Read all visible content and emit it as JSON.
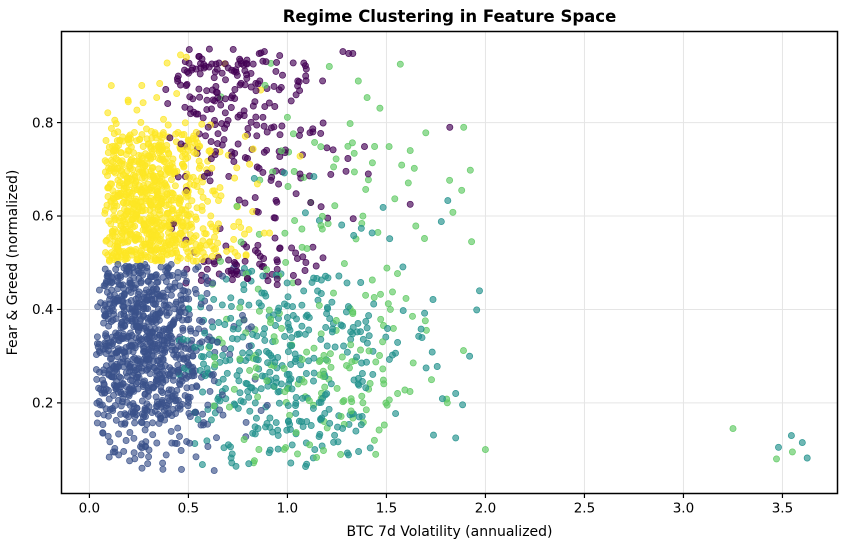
{
  "chart_data": {
    "type": "scatter",
    "title": "Regime Clustering in Feature Space",
    "xlabel": "BTC 7d Volatility (annualized)",
    "ylabel": "Fear & Greed (normalized)",
    "xlim": [
      -0.141,
      3.778
    ],
    "ylim": [
      0.006,
      0.995
    ],
    "xticks": [
      {
        "label": "0.0",
        "value": 0.0
      },
      {
        "label": "0.5",
        "value": 0.5
      },
      {
        "label": "1.0",
        "value": 1.0
      },
      {
        "label": "1.5",
        "value": 1.5
      },
      {
        "label": "2.0",
        "value": 2.0
      },
      {
        "label": "2.5",
        "value": 2.5
      },
      {
        "label": "3.0",
        "value": 3.0
      },
      {
        "label": "3.5",
        "value": 3.5
      }
    ],
    "yticks": [
      {
        "label": "0.2",
        "value": 0.2
      },
      {
        "label": "0.4",
        "value": 0.4
      },
      {
        "label": "0.6",
        "value": 0.6
      },
      {
        "label": "0.8",
        "value": 0.8
      }
    ],
    "grid": true,
    "grid_color": "#e5e5e5",
    "legend": "none",
    "colormap": "viridis",
    "marker": {
      "radius_px": 3.1,
      "fill_alpha": 0.65,
      "edge_alpha": 0.9
    },
    "seed": 7,
    "series": [
      {
        "name": "cluster-blue",
        "color": "#3b528b",
        "parts": [
          {
            "n": 500,
            "x": {
              "kind": "normal",
              "mu": 0.26,
              "sigma": 0.17,
              "lo": 0.035,
              "hi": 0.93
            },
            "y": {
              "kind": "uniform",
              "lo": 0.17,
              "hi": 0.497
            }
          },
          {
            "n": 380,
            "x": {
              "kind": "normal",
              "mu": 0.27,
              "sigma": 0.19,
              "lo": 0.035,
              "hi": 0.9
            },
            "y": {
              "kind": "normal",
              "mu": 0.27,
              "sigma": 0.12,
              "lo": 0.056,
              "hi": 0.497
            }
          }
        ],
        "points": [
          [
            0.63,
            0.055
          ],
          [
            0.12,
            0.095
          ]
        ]
      },
      {
        "name": "cluster-yellow",
        "color": "#fde725",
        "parts": [
          {
            "n": 500,
            "x": {
              "kind": "normal",
              "mu": 0.27,
              "sigma": 0.15,
              "lo": 0.075,
              "hi": 0.9
            },
            "y": {
              "kind": "uniform",
              "lo": 0.503,
              "hi": 0.78
            }
          },
          {
            "n": 310,
            "x": {
              "kind": "normal",
              "mu": 0.35,
              "sigma": 0.22,
              "lo": 0.08,
              "hi": 1.2
            },
            "y": {
              "kind": "absshift",
              "mu": 0.503,
              "sigma": 0.16,
              "lo": 0.503,
              "hi": 0.958
            }
          }
        ],
        "points": [
          [
            0.46,
            0.945
          ],
          [
            0.49,
            0.94
          ]
        ]
      },
      {
        "name": "cluster-purple",
        "color": "#440154",
        "parts": [
          {
            "n": 205,
            "x": {
              "kind": "normal",
              "mu": 0.7,
              "sigma": 0.2,
              "lo": 0.37,
              "hi": 1.33
            },
            "y": {
              "kind": "negabsshift",
              "mu": 0.96,
              "sigma": 0.17,
              "lo": 0.455,
              "hi": 0.958
            }
          },
          {
            "n": 58,
            "x": {
              "kind": "normal",
              "mu": 0.78,
              "sigma": 0.24,
              "lo": 0.42,
              "hi": 1.3
            },
            "y": {
              "kind": "normal",
              "mu": 0.49,
              "sigma": 0.028,
              "lo": 0.452,
              "hi": 0.56
            }
          },
          {
            "n": 30,
            "x": {
              "kind": "normal",
              "mu": 1.05,
              "sigma": 0.18,
              "lo": 0.5,
              "hi": 1.44
            },
            "y": {
              "kind": "normal",
              "mu": 0.7,
              "sigma": 0.12,
              "lo": 0.5,
              "hi": 0.9
            }
          }
        ],
        "points": [
          [
            1.82,
            0.79
          ],
          [
            1.62,
            0.625
          ],
          [
            1.28,
            0.952
          ],
          [
            1.33,
            0.948
          ],
          [
            1.17,
            0.62
          ]
        ]
      },
      {
        "name": "cluster-teal",
        "color": "#21918c",
        "parts": [
          {
            "n": 355,
            "x": {
              "kind": "normal",
              "mu": 0.98,
              "sigma": 0.34,
              "lo": 0.44,
              "hi": 2.02
            },
            "y": {
              "kind": "normal",
              "mu": 0.275,
              "sigma": 0.115,
              "lo": 0.056,
              "hi": 0.499
            }
          },
          {
            "n": 12,
            "x": {
              "kind": "normal",
              "mu": 1.35,
              "sigma": 0.35,
              "lo": 0.75,
              "hi": 1.95
            },
            "y": {
              "kind": "normal",
              "mu": 0.57,
              "sigma": 0.07,
              "lo": 0.5,
              "hi": 0.74
            }
          }
        ],
        "points": [
          [
            3.48,
            0.105
          ],
          [
            3.545,
            0.13
          ],
          [
            3.6,
            0.115
          ],
          [
            3.625,
            0.082
          ],
          [
            1.85,
            0.125
          ],
          [
            1.97,
            0.44
          ],
          [
            1.81,
            0.633
          ],
          [
            1.85,
            0.22
          ],
          [
            1.92,
            0.3
          ]
        ]
      },
      {
        "name": "cluster-green",
        "color": "#5ec962",
        "parts": [
          {
            "n": 150,
            "x": {
              "kind": "normal",
              "mu": 1.15,
              "sigma": 0.35,
              "lo": 0.6,
              "hi": 2.0
            },
            "y": {
              "kind": "normal",
              "mu": 0.3,
              "sigma": 0.13,
              "lo": 0.07,
              "hi": 0.52
            }
          },
          {
            "n": 58,
            "x": {
              "kind": "normal",
              "mu": 1.2,
              "sigma": 0.3,
              "lo": 0.65,
              "hi": 1.98
            },
            "y": {
              "kind": "normal",
              "mu": 0.7,
              "sigma": 0.14,
              "lo": 0.52,
              "hi": 0.95
            }
          }
        ],
        "points": [
          [
            3.25,
            0.145
          ],
          [
            3.47,
            0.08
          ],
          [
            3.55,
            0.095
          ],
          [
            1.57,
            0.925
          ],
          [
            1.89,
            0.79
          ],
          [
            1.88,
            0.655
          ],
          [
            1.93,
            0.545
          ],
          [
            2.0,
            0.1
          ],
          [
            1.62,
            0.74
          ],
          [
            1.52,
            0.4
          ]
        ]
      }
    ]
  }
}
